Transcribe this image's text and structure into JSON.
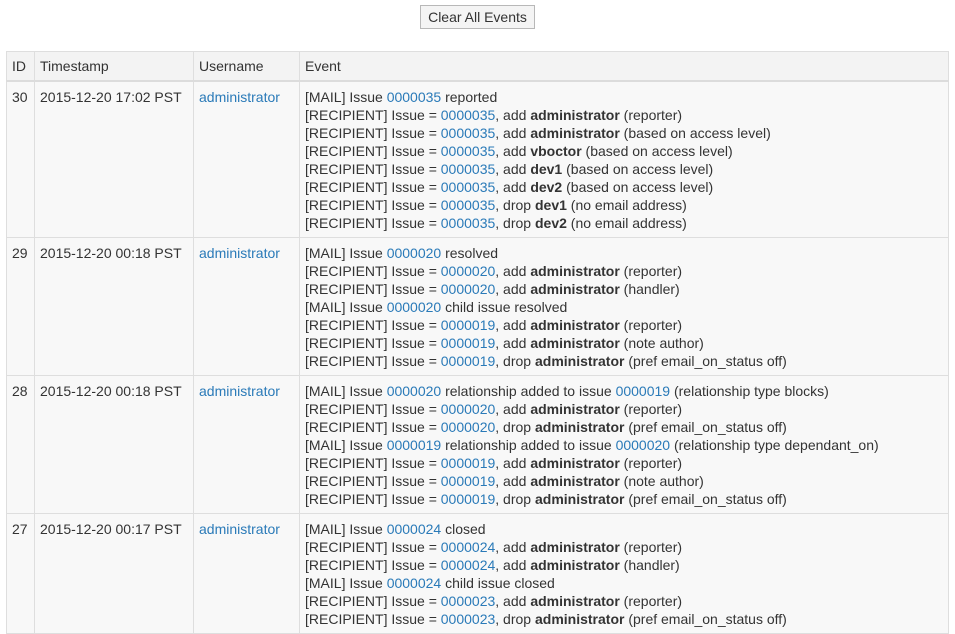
{
  "toolbar": {
    "clear_label": "Clear All Events"
  },
  "columns": {
    "id": "ID",
    "timestamp": "Timestamp",
    "username": "Username",
    "event": "Event"
  },
  "colors": {
    "link": "#2a7ab8",
    "row_bg": "#f8f8f8",
    "border": "#dedede"
  },
  "rows": [
    {
      "id": "30",
      "timestamp": "2015-12-20 17:02 PST",
      "username": "administrator",
      "lines": [
        [
          {
            "t": "[MAIL] Issue "
          },
          {
            "l": "0000035"
          },
          {
            "t": " reported"
          }
        ],
        [
          {
            "t": "[RECIPIENT] Issue = "
          },
          {
            "l": "0000035"
          },
          {
            "t": ", add "
          },
          {
            "b": "administrator"
          },
          {
            "t": " (reporter)"
          }
        ],
        [
          {
            "t": "[RECIPIENT] Issue = "
          },
          {
            "l": "0000035"
          },
          {
            "t": ", add "
          },
          {
            "b": "administrator"
          },
          {
            "t": " (based on access level)"
          }
        ],
        [
          {
            "t": "[RECIPIENT] Issue = "
          },
          {
            "l": "0000035"
          },
          {
            "t": ", add "
          },
          {
            "b": "vboctor"
          },
          {
            "t": " (based on access level)"
          }
        ],
        [
          {
            "t": "[RECIPIENT] Issue = "
          },
          {
            "l": "0000035"
          },
          {
            "t": ", add "
          },
          {
            "b": "dev1"
          },
          {
            "t": " (based on access level)"
          }
        ],
        [
          {
            "t": "[RECIPIENT] Issue = "
          },
          {
            "l": "0000035"
          },
          {
            "t": ", add "
          },
          {
            "b": "dev2"
          },
          {
            "t": " (based on access level)"
          }
        ],
        [
          {
            "t": "[RECIPIENT] Issue = "
          },
          {
            "l": "0000035"
          },
          {
            "t": ", drop "
          },
          {
            "b": "dev1"
          },
          {
            "t": " (no email address)"
          }
        ],
        [
          {
            "t": "[RECIPIENT] Issue = "
          },
          {
            "l": "0000035"
          },
          {
            "t": ", drop "
          },
          {
            "b": "dev2"
          },
          {
            "t": " (no email address)"
          }
        ]
      ]
    },
    {
      "id": "29",
      "timestamp": "2015-12-20 00:18 PST",
      "username": "administrator",
      "lines": [
        [
          {
            "t": "[MAIL] Issue "
          },
          {
            "l": "0000020"
          },
          {
            "t": " resolved"
          }
        ],
        [
          {
            "t": "[RECIPIENT] Issue = "
          },
          {
            "l": "0000020"
          },
          {
            "t": ", add "
          },
          {
            "b": "administrator"
          },
          {
            "t": " (reporter)"
          }
        ],
        [
          {
            "t": "[RECIPIENT] Issue = "
          },
          {
            "l": "0000020"
          },
          {
            "t": ", add "
          },
          {
            "b": "administrator"
          },
          {
            "t": " (handler)"
          }
        ],
        [
          {
            "t": "[MAIL] Issue "
          },
          {
            "l": "0000020"
          },
          {
            "t": " child issue resolved"
          }
        ],
        [
          {
            "t": "[RECIPIENT] Issue = "
          },
          {
            "l": "0000019"
          },
          {
            "t": ", add "
          },
          {
            "b": "administrator"
          },
          {
            "t": " (reporter)"
          }
        ],
        [
          {
            "t": "[RECIPIENT] Issue = "
          },
          {
            "l": "0000019"
          },
          {
            "t": ", add "
          },
          {
            "b": "administrator"
          },
          {
            "t": " (note author)"
          }
        ],
        [
          {
            "t": "[RECIPIENT] Issue = "
          },
          {
            "l": "0000019"
          },
          {
            "t": ", drop "
          },
          {
            "b": "administrator"
          },
          {
            "t": " (pref email_on_status off)"
          }
        ]
      ]
    },
    {
      "id": "28",
      "timestamp": "2015-12-20 00:18 PST",
      "username": "administrator",
      "lines": [
        [
          {
            "t": "[MAIL] Issue "
          },
          {
            "l": "0000020"
          },
          {
            "t": " relationship added to issue "
          },
          {
            "l": "0000019"
          },
          {
            "t": " (relationship type blocks)"
          }
        ],
        [
          {
            "t": "[RECIPIENT] Issue = "
          },
          {
            "l": "0000020"
          },
          {
            "t": ", add "
          },
          {
            "b": "administrator"
          },
          {
            "t": " (reporter)"
          }
        ],
        [
          {
            "t": "[RECIPIENT] Issue = "
          },
          {
            "l": "0000020"
          },
          {
            "t": ", drop "
          },
          {
            "b": "administrator"
          },
          {
            "t": " (pref email_on_status off)"
          }
        ],
        [
          {
            "t": "[MAIL] Issue "
          },
          {
            "l": "0000019"
          },
          {
            "t": " relationship added to issue "
          },
          {
            "l": "0000020"
          },
          {
            "t": " (relationship type dependant_on)"
          }
        ],
        [
          {
            "t": "[RECIPIENT] Issue = "
          },
          {
            "l": "0000019"
          },
          {
            "t": ", add "
          },
          {
            "b": "administrator"
          },
          {
            "t": " (reporter)"
          }
        ],
        [
          {
            "t": "[RECIPIENT] Issue = "
          },
          {
            "l": "0000019"
          },
          {
            "t": ", add "
          },
          {
            "b": "administrator"
          },
          {
            "t": " (note author)"
          }
        ],
        [
          {
            "t": "[RECIPIENT] Issue = "
          },
          {
            "l": "0000019"
          },
          {
            "t": ", drop "
          },
          {
            "b": "administrator"
          },
          {
            "t": " (pref email_on_status off)"
          }
        ]
      ]
    },
    {
      "id": "27",
      "timestamp": "2015-12-20 00:17 PST",
      "username": "administrator",
      "lines": [
        [
          {
            "t": "[MAIL] Issue "
          },
          {
            "l": "0000024"
          },
          {
            "t": " closed"
          }
        ],
        [
          {
            "t": "[RECIPIENT] Issue = "
          },
          {
            "l": "0000024"
          },
          {
            "t": ", add "
          },
          {
            "b": "administrator"
          },
          {
            "t": " (reporter)"
          }
        ],
        [
          {
            "t": "[RECIPIENT] Issue = "
          },
          {
            "l": "0000024"
          },
          {
            "t": ", add "
          },
          {
            "b": "administrator"
          },
          {
            "t": " (handler)"
          }
        ],
        [
          {
            "t": "[MAIL] Issue "
          },
          {
            "l": "0000024"
          },
          {
            "t": " child issue closed"
          }
        ],
        [
          {
            "t": "[RECIPIENT] Issue = "
          },
          {
            "l": "0000023"
          },
          {
            "t": ", add "
          },
          {
            "b": "administrator"
          },
          {
            "t": " (reporter)"
          }
        ],
        [
          {
            "t": "[RECIPIENT] Issue = "
          },
          {
            "l": "0000023"
          },
          {
            "t": ", drop "
          },
          {
            "b": "administrator"
          },
          {
            "t": " (pref email_on_status off)"
          }
        ]
      ]
    }
  ]
}
